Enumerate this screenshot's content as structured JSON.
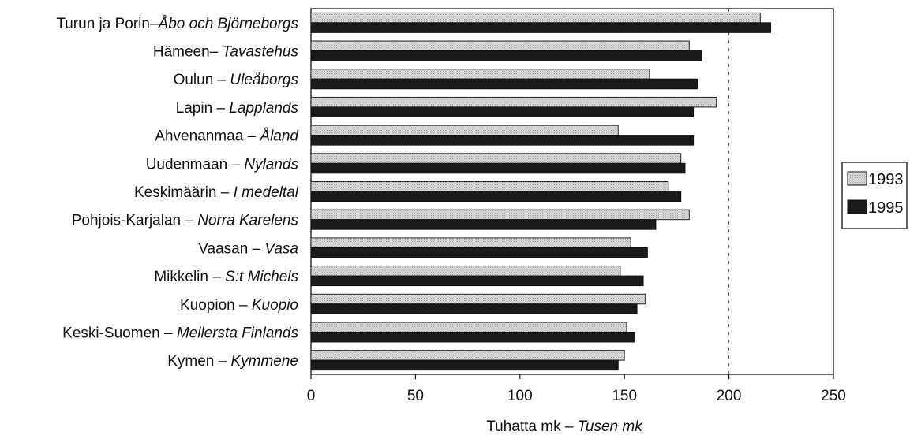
{
  "chart_data": {
    "type": "bar",
    "orientation": "horizontal",
    "categories": [
      {
        "plain": "Turun ja Porin–",
        "italic": "Åbo och Björneborgs"
      },
      {
        "plain": "Hämeen– ",
        "italic": "Tavastehus"
      },
      {
        "plain": "Oulun – ",
        "italic": "Uleåborgs"
      },
      {
        "plain": "Lapin – ",
        "italic": "Lapplands"
      },
      {
        "plain": "Ahvenanmaa – ",
        "italic": "Åland"
      },
      {
        "plain": "Uudenmaan – ",
        "italic": "Nylands"
      },
      {
        "plain": "Keskimäärin – ",
        "italic": "I medeltal"
      },
      {
        "plain": "Pohjois-Karjalan – ",
        "italic": "Norra Karelens"
      },
      {
        "plain": "Vaasan – ",
        "italic": "Vasa"
      },
      {
        "plain": "Mikkelin – ",
        "italic": "S:t Michels"
      },
      {
        "plain": "Kuopion – ",
        "italic": "Kuopio"
      },
      {
        "plain": "Keski-Suomen – ",
        "italic": "Mellersta Finlands"
      },
      {
        "plain": "Kymen – ",
        "italic": "Kymmene"
      }
    ],
    "series": [
      {
        "name": "1993",
        "color": "#d4d4d4",
        "values": [
          215,
          181,
          162,
          194,
          147,
          177,
          171,
          181,
          153,
          148,
          160,
          151,
          150
        ]
      },
      {
        "name": "1995",
        "color": "#1a1a1a",
        "values": [
          220,
          187,
          185,
          183,
          183,
          179,
          177,
          165,
          161,
          159,
          156,
          155,
          147
        ]
      }
    ],
    "xlim": [
      0,
      250
    ],
    "xticks": [
      0,
      50,
      100,
      150,
      200,
      250
    ],
    "reference_line": 200,
    "xlabel": {
      "plain": "Tuhatta mk – ",
      "italic": "Tusen mk"
    },
    "legend_position": "right"
  }
}
